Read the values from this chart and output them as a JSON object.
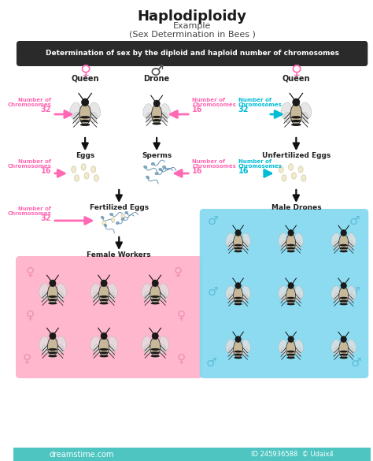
{
  "title": "Haplodiploidy",
  "subtitle1": "Example",
  "subtitle2": "(Sex Determination in Bees )",
  "banner_text": "Determination of sex by the diploid and haploid number of chromosomes",
  "bg_color": "#ffffff",
  "banner_bg": "#2a2a2a",
  "banner_text_color": "#ffffff",
  "pink_color": "#ff69b4",
  "blue_color": "#00bcd4",
  "pink_bg": "#ffb0c8",
  "blue_bg": "#80d8f0",
  "left_queen_label": "Queen",
  "drone_label": "Drone",
  "right_queen_label": "Queen",
  "female_symbol": "♀",
  "male_symbol": "♂",
  "eggs_label": "Eggs",
  "sperms_label": "Sperms",
  "unfertilized_label": "Unfertilized Eggs",
  "fertilized_label": "Fertilized Eggs",
  "female_workers_label": "Female Workers",
  "male_drones_label": "Male Drones",
  "chr_label_line1": "Number of",
  "chr_label_line2": "Chromosomes",
  "chr32": "32",
  "chr16": "16",
  "dreamtime_bg": "#4ec5c1",
  "watermark_left": "dreamstime.com",
  "watermark_right": "ID 245936588  © Udaix4"
}
